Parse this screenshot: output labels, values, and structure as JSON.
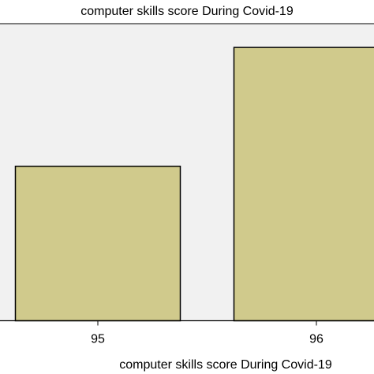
{
  "chart_data": {
    "type": "bar",
    "title": "computer skills score During Covid-19",
    "xlabel": "computer skills score During Covid-19",
    "ylabel": "",
    "categories": [
      "95",
      "96"
    ],
    "values": [
      52,
      92
    ],
    "ylim": [
      0,
      100
    ],
    "grid": false,
    "legend": "none",
    "bar_color": "#d0ca8c",
    "bar_edge_color": "#000000",
    "plot_background": "#f1f1f1"
  }
}
